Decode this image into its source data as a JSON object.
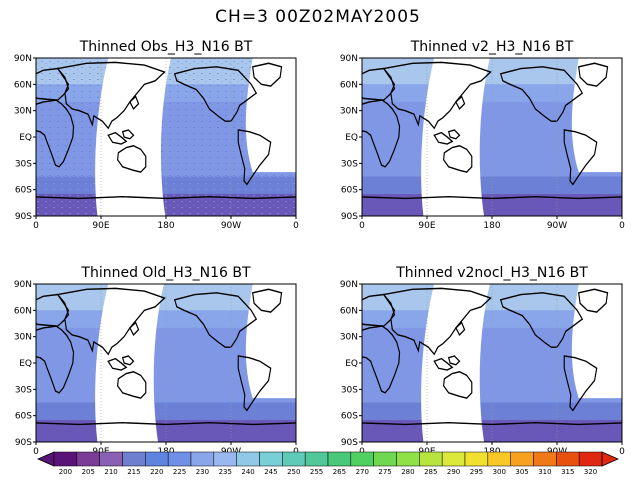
{
  "figure": {
    "title": "CH=3    00Z02MAY2005"
  },
  "axes": {
    "lon_ticks": [
      "0",
      "90E",
      "180",
      "90W",
      "0"
    ],
    "lat_ticks": [
      "90N",
      "60N",
      "30N",
      "EQ",
      "30S",
      "60S",
      "90S"
    ]
  },
  "panels": [
    {
      "title": "Thinned Obs_H3_N16 BT"
    },
    {
      "title": "Thinned v2_H3_N16 BT"
    },
    {
      "title": "Thinned Old_H3_N16 BT"
    },
    {
      "title": "Thinned v2nocl_H3_N16 BT"
    }
  ],
  "colorbar": {
    "labels": [
      "200",
      "205",
      "210",
      "215",
      "220",
      "225",
      "230",
      "235",
      "240",
      "245",
      "250",
      "255",
      "265",
      "270",
      "275",
      "280",
      "285",
      "290",
      "295",
      "300",
      "305",
      "310",
      "315",
      "320"
    ],
    "colors": [
      "#5a1478",
      "#7a3c96",
      "#8a60b4",
      "#6f7fd0",
      "#5f84e0",
      "#7090e8",
      "#8aa6ea",
      "#9ab8f0",
      "#90c8e8",
      "#78cfd8",
      "#60cab8",
      "#50c89a",
      "#48c878",
      "#50d060",
      "#70d850",
      "#90e048",
      "#b8e440",
      "#dce83a",
      "#f0e030",
      "#f8c828",
      "#f8a020",
      "#f07818",
      "#e85010",
      "#e02810"
    ]
  },
  "chart_data": {
    "type": "heatmap",
    "title": "CH=3    00Z02MAY2005",
    "xlabel": "",
    "ylabel": "",
    "x_ticks": [
      "0",
      "90E",
      "180",
      "90W",
      "0"
    ],
    "y_ticks": [
      "90N",
      "60N",
      "30N",
      "EQ",
      "30S",
      "60S",
      "90S"
    ],
    "x_range": [
      0,
      360
    ],
    "y_range": [
      -90,
      90
    ],
    "colorbar_levels": [
      200,
      205,
      210,
      215,
      220,
      225,
      230,
      235,
      240,
      245,
      250,
      255,
      265,
      270,
      275,
      280,
      285,
      290,
      295,
      300,
      305,
      310,
      315,
      320
    ],
    "panels": [
      {
        "name": "Thinned Obs_H3_N16 BT",
        "no_data_swath_lon": [
          95,
          175
        ]
      },
      {
        "name": "Thinned v2_H3_N16 BT",
        "no_data_swath_lon": [
          95,
          165
        ]
      },
      {
        "name": "Thinned Old_H3_N16 BT",
        "no_data_swath_lon": [
          95,
          165
        ]
      },
      {
        "name": "Thinned v2nocl_H3_N16 BT",
        "no_data_swath_lon": [
          95,
          165
        ]
      }
    ]
  }
}
